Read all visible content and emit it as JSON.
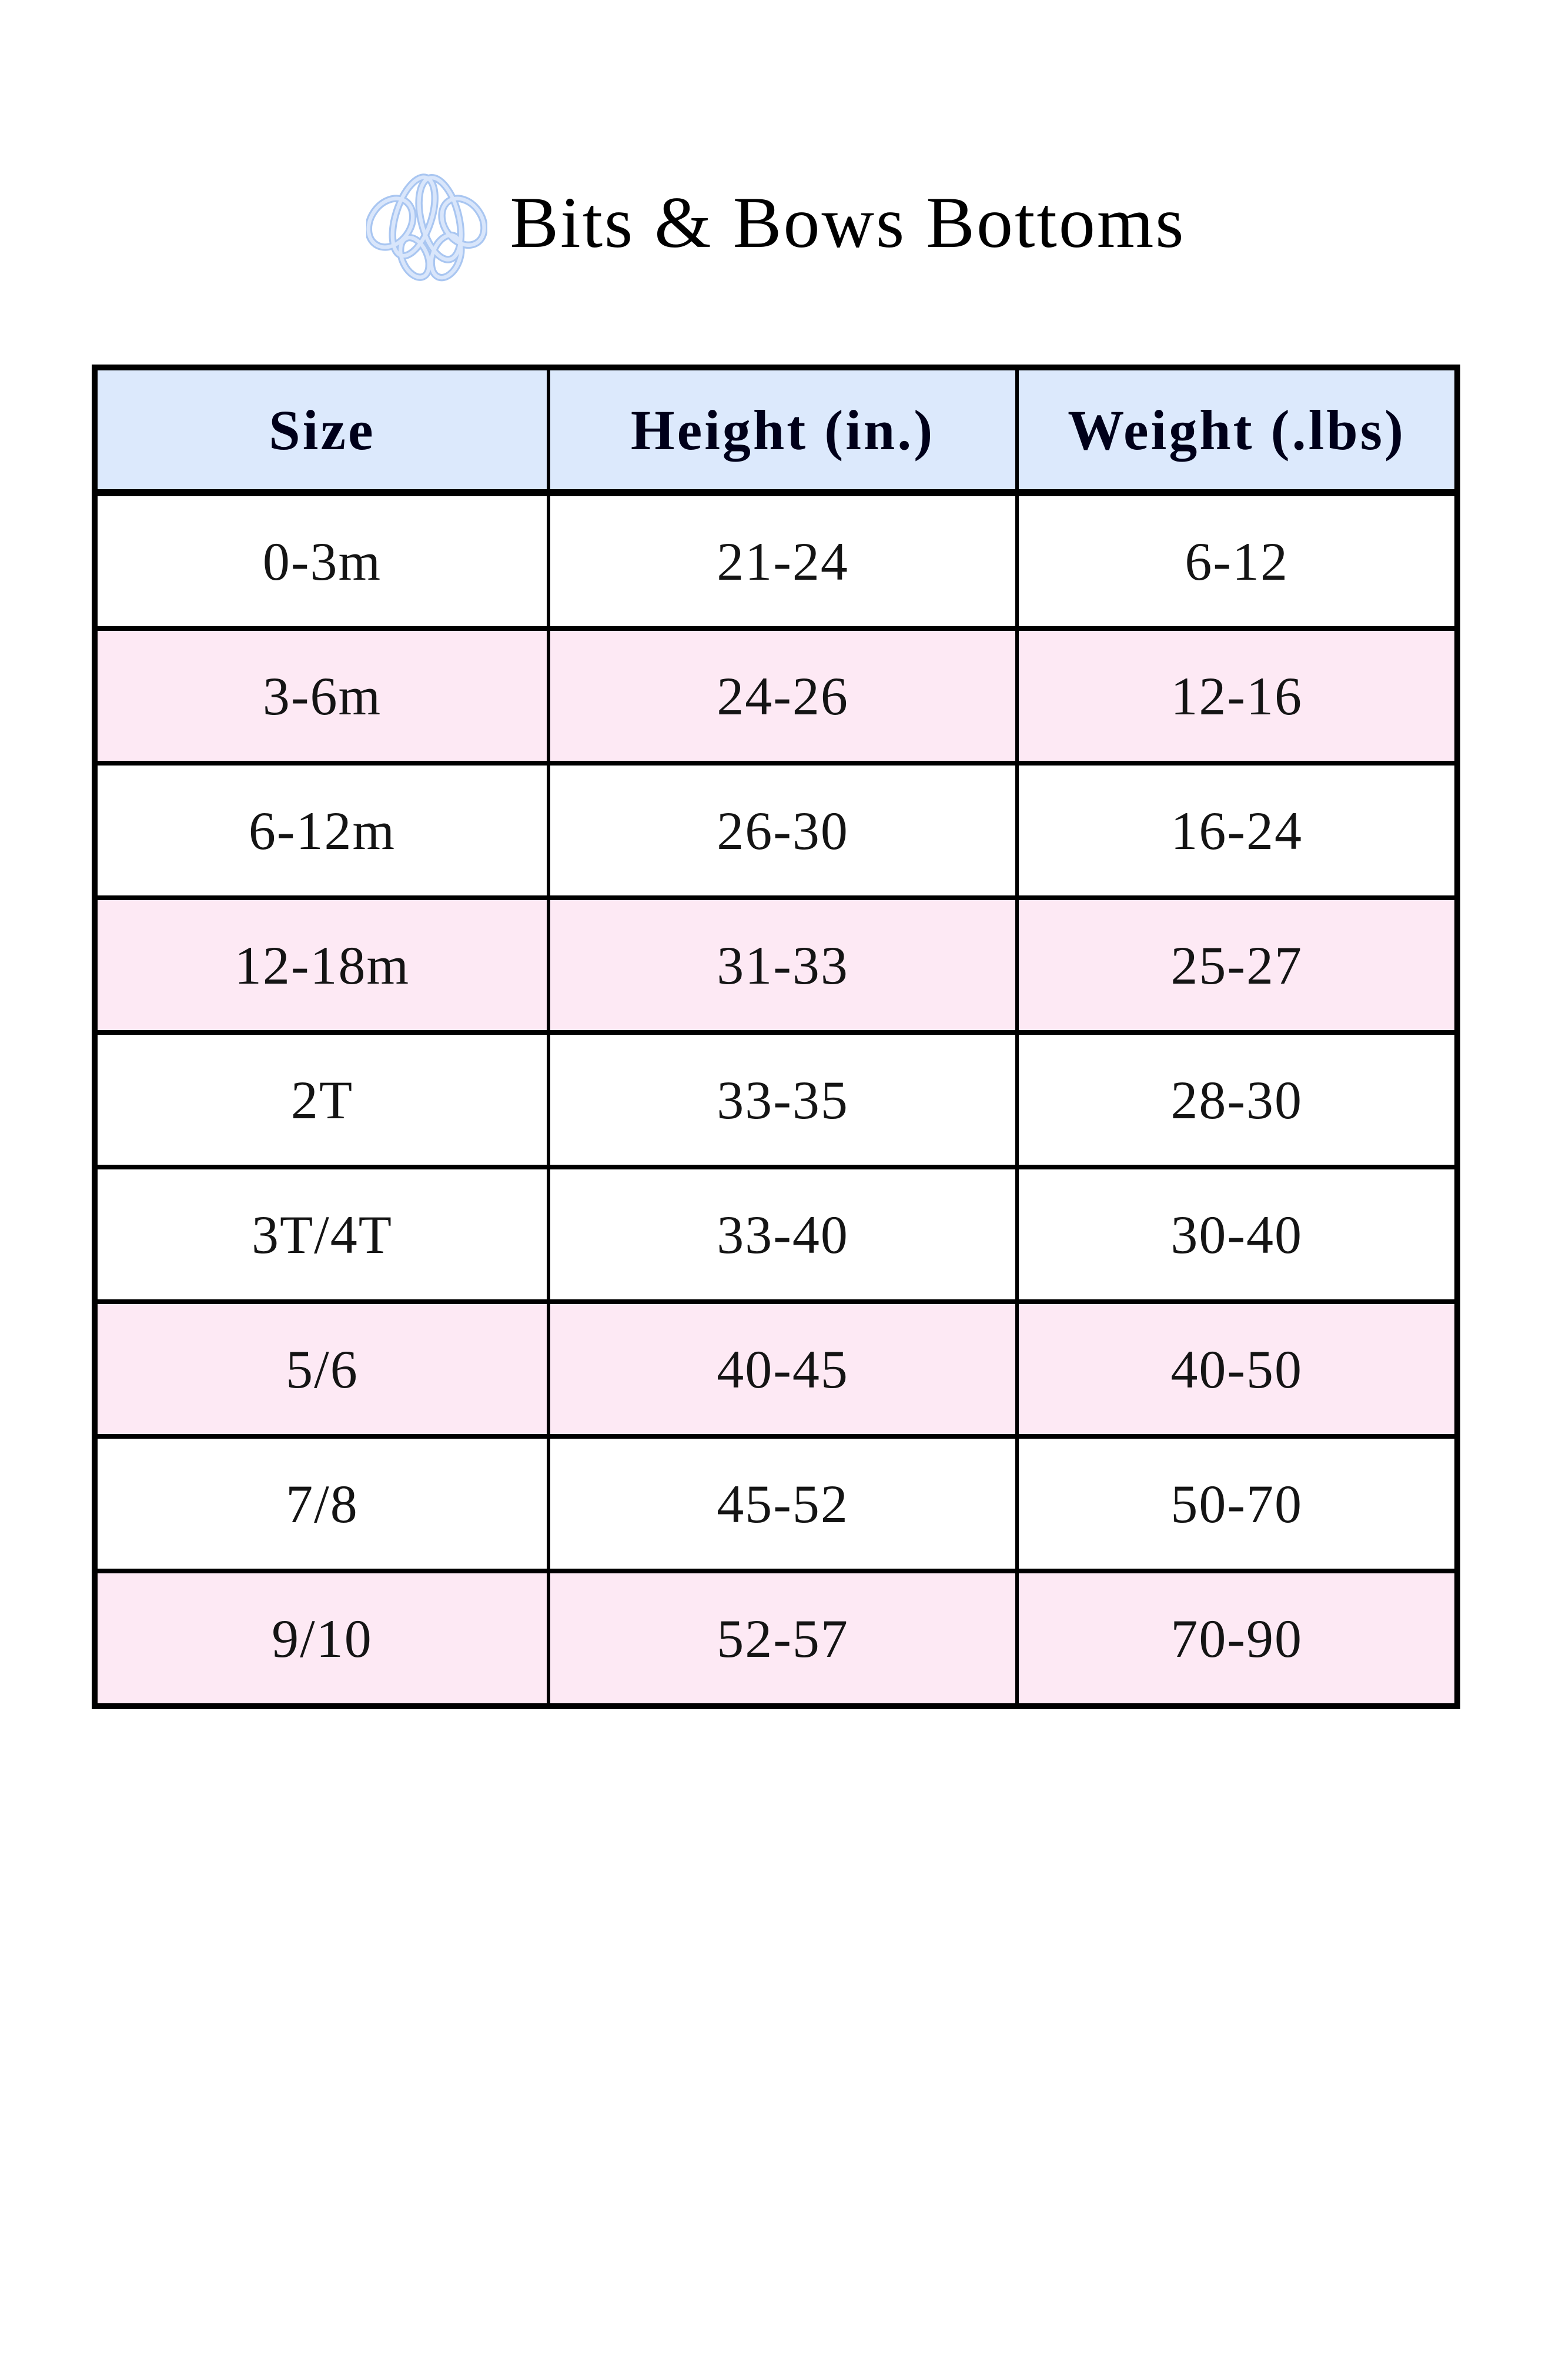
{
  "title": {
    "text": "Bits & Bows Bottoms"
  },
  "logo": {
    "icon": "interlocking-bows-monogram-icon",
    "stroke_color": "#a9c6f1",
    "fill_color": "#d9e6fb"
  },
  "colors": {
    "page_bg": "#ffffff",
    "header_row_bg": "#dce9fc",
    "pink_row_bg": "#fde9f4",
    "white_row_bg": "#ffffff",
    "border": "#000000",
    "text": "#141414"
  },
  "chart_data": {
    "type": "table",
    "title": "Bits & Bows Bottoms",
    "columns": [
      "Size",
      "Height (in.)",
      "Weight (.lbs)"
    ],
    "rows": [
      [
        "0-3m",
        "21-24",
        "6-12"
      ],
      [
        "3-6m",
        "24-26",
        "12-16"
      ],
      [
        "6-12m",
        "26-30",
        "16-24"
      ],
      [
        "12-18m",
        "31-33",
        "25-27"
      ],
      [
        "2T",
        "33-35",
        "28-30"
      ],
      [
        "3T/4T",
        "33-40",
        "30-40"
      ],
      [
        "5/6",
        "40-45",
        "40-50"
      ],
      [
        "7/8",
        "45-52",
        "50-70"
      ],
      [
        "9/10",
        "52-57",
        "70-90"
      ]
    ],
    "row_shading": [
      "white",
      "pink",
      "white",
      "pink",
      "white",
      "white",
      "pink",
      "white",
      "pink"
    ],
    "layout": "3-column size chart; light blue bold header row; data rows alternate white and light pink; black grid borders; all cells center-aligned"
  }
}
